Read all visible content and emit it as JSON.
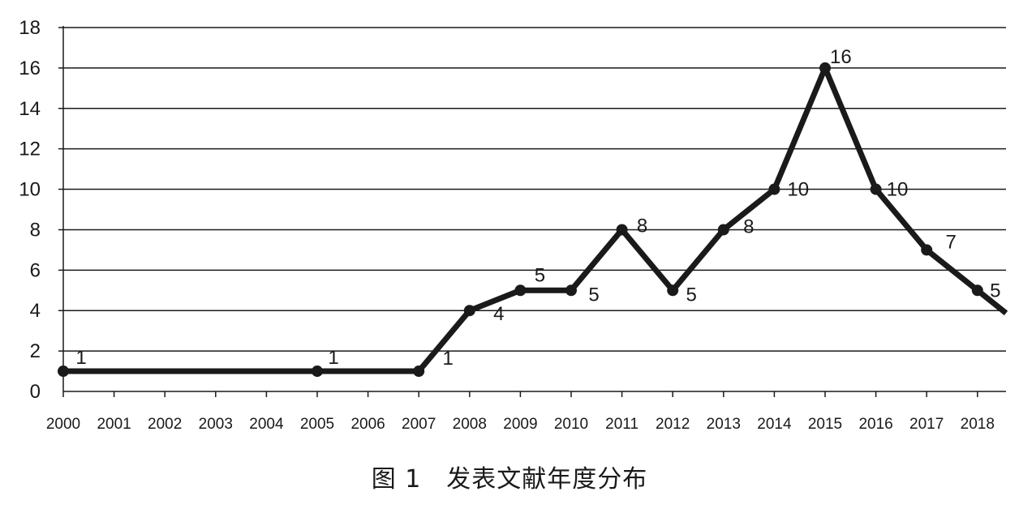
{
  "chart_data": {
    "type": "line",
    "title": "",
    "xlabel": "",
    "ylabel": "",
    "ylim": [
      0,
      18
    ],
    "yticks": [
      0,
      2,
      4,
      6,
      8,
      10,
      12,
      14,
      16,
      18
    ],
    "categories": [
      "2000",
      "2001",
      "2002",
      "2003",
      "2004",
      "2005",
      "2006",
      "2007",
      "2008",
      "2009",
      "2010",
      "2011",
      "2012",
      "2013",
      "2014",
      "2015",
      "2016",
      "2017",
      "2018"
    ],
    "points": [
      {
        "year": "2000",
        "value": 1
      },
      {
        "year": "2005",
        "value": 1
      },
      {
        "year": "2007",
        "value": 1
      },
      {
        "year": "2008",
        "value": 4
      },
      {
        "year": "2009",
        "value": 5
      },
      {
        "year": "2010",
        "value": 5
      },
      {
        "year": "2011",
        "value": 8
      },
      {
        "year": "2012",
        "value": 5
      },
      {
        "year": "2013",
        "value": 8
      },
      {
        "year": "2014",
        "value": 10
      },
      {
        "year": "2015",
        "value": 16
      },
      {
        "year": "2016",
        "value": 10
      },
      {
        "year": "2017",
        "value": 7
      },
      {
        "year": "2018",
        "value": 5
      }
    ],
    "line_color": "#1a1a1a",
    "grid": true,
    "legend": false
  },
  "caption": "图 1　发表文献年度分布"
}
